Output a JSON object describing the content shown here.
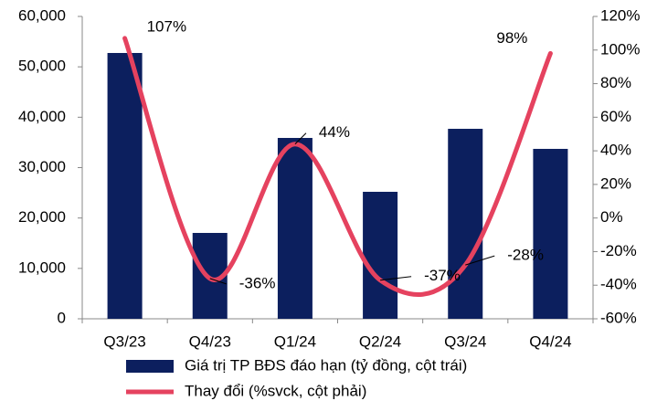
{
  "chart_data": {
    "type": "bar_line",
    "categories": [
      "Q3/23",
      "Q4/23",
      "Q1/24",
      "Q2/24",
      "Q3/24",
      "Q4/24"
    ],
    "series": [
      {
        "name": "Giá trị TP BĐS đáo hạn (tỷ đồng, cột trái)",
        "type": "bar",
        "color": "#0c1f5e",
        "values": [
          52750,
          17040,
          35890,
          25200,
          37700,
          33720
        ]
      },
      {
        "name": "Thay đổi (%svck, cột phải)",
        "type": "line",
        "axis": "y2",
        "color": "#e5425f",
        "values": [
          107,
          -36,
          44,
          -37,
          -28,
          98
        ],
        "value_labels": [
          "107%",
          "-36%",
          "44%",
          "-37%",
          "-28%",
          "98%"
        ]
      }
    ],
    "ylim": [
      0,
      60000
    ],
    "yticks": [
      0,
      {
        "value": 10000,
        "label": "10,000"
      },
      {
        "value": 20000,
        "label": "20,000"
      },
      {
        "value": 30000,
        "label": "30,000"
      },
      {
        "value": 40000,
        "label": "40,000"
      },
      {
        "value": 50000,
        "label": "50,000"
      },
      {
        "value": 60000,
        "label": "60,000"
      }
    ],
    "y2lim": [
      -60,
      120
    ],
    "y2ticks": [
      {
        "value": -60,
        "label": "-60%"
      },
      {
        "value": -40,
        "label": "-40%"
      },
      {
        "value": -20,
        "label": "-20%"
      },
      {
        "value": 0,
        "label": "0%"
      },
      {
        "value": 20,
        "label": "20%"
      },
      {
        "value": 40,
        "label": "40%"
      },
      {
        "value": 60,
        "label": "60%"
      },
      {
        "value": 80,
        "label": "80%"
      },
      {
        "value": 100,
        "label": "100%"
      },
      {
        "value": 120,
        "label": "120%"
      }
    ]
  }
}
